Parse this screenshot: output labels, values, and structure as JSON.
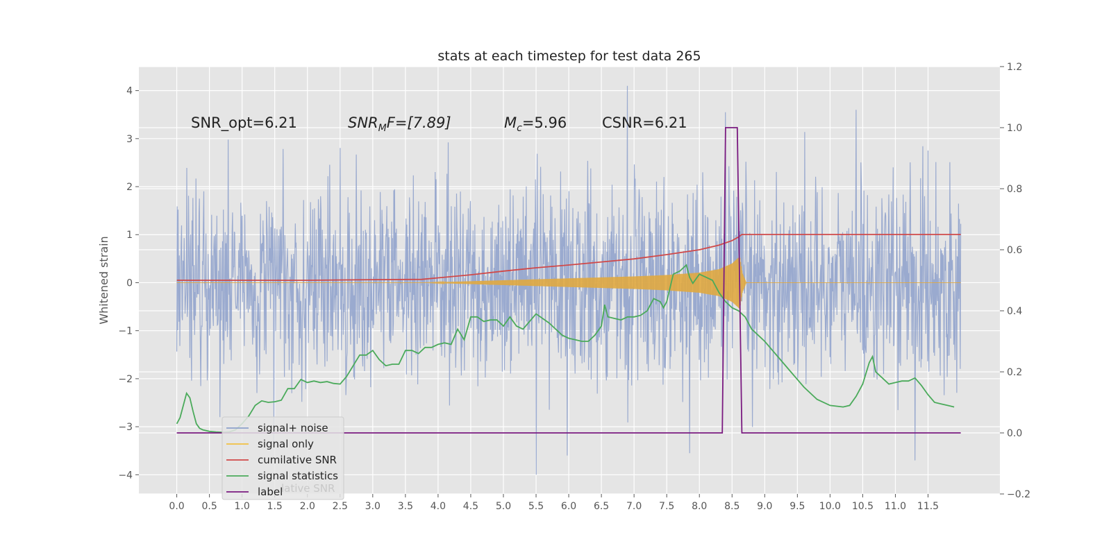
{
  "chart_data": {
    "type": "line",
    "title": "stats at each timestep for test data 265",
    "ylabel": "Whitened strain",
    "xlabel": "",
    "xlim": [
      -0.58,
      12.6
    ],
    "ylim": [
      -4.4,
      4.5
    ],
    "y2lim": [
      -0.2,
      1.2
    ],
    "grid": true,
    "legend_placement": "lower-left",
    "x_ticks": [
      "0.0",
      "0.5",
      "1.0",
      "1.5",
      "2.0",
      "2.5",
      "3.0",
      "3.5",
      "4.0",
      "4.5",
      "5.0",
      "5.5",
      "6.0",
      "6.5",
      "7.0",
      "7.5",
      "8.0",
      "8.5",
      "9.0",
      "9.5",
      "10.0",
      "10.5",
      "11.0",
      "11.5"
    ],
    "y_ticks": [
      "4",
      "3",
      "2",
      "1",
      "0",
      "−1",
      "−2",
      "−3",
      "−4"
    ],
    "y2_ticks": [
      "1.2",
      "1.0",
      "0.8",
      "0.6",
      "0.4",
      "0.2",
      "0.0",
      "−0.2"
    ],
    "annotations": {
      "snr_opt": "SNR_opt=6.21",
      "snr_mf_main": "SNR",
      "snr_mf_sub": "M",
      "snr_mf_rest": "F=[7.89]",
      "mc_main": "M",
      "mc_sub": "c",
      "mc_rest": "=5.96",
      "csnr": "CSNR=6.21"
    },
    "legend": [
      {
        "name": "signal+ noise",
        "color": "#8da0cb"
      },
      {
        "name": "signal only",
        "color": "#f2c040"
      },
      {
        "name": "cumilative SNR",
        "color": "#d04848"
      },
      {
        "name": "signal statistics",
        "color": "#4aaa5a"
      },
      {
        "name": "label",
        "color": "#7a1a80"
      }
    ],
    "legend_ghost_text": "lative SNR",
    "series": [
      {
        "name": "signal+ noise",
        "axis": "left",
        "description": "whitened noisy strain, roughly gaussian noise over 0.0–12.0 s",
        "t_range": [
          0.0,
          12.0
        ],
        "amplitude_range": [
          -4.0,
          4.1
        ],
        "spike_peaks": [
          [
            6.9,
            4.1
          ],
          [
            10.4,
            3.6
          ],
          [
            8.4,
            3.55
          ],
          [
            5.5,
            -4.0
          ],
          [
            11.3,
            -3.7
          ],
          [
            7.85,
            -3.55
          ]
        ]
      },
      {
        "name": "signal only",
        "axis": "left",
        "description": "chirp signal growing from ~3.9 s to merger at ~8.65 s then ringdown to 0",
        "envelope": {
          "t": [
            3.8,
            4.5,
            5.0,
            5.5,
            6.0,
            6.5,
            7.0,
            7.5,
            8.0,
            8.3,
            8.5,
            8.62,
            8.66,
            8.72
          ],
          "amp": [
            0.0,
            0.03,
            0.05,
            0.07,
            0.09,
            0.11,
            0.13,
            0.16,
            0.21,
            0.28,
            0.4,
            0.55,
            0.2,
            0.0
          ]
        }
      },
      {
        "name": "cumilative SNR",
        "axis": "right",
        "x": [
          0.0,
          1.0,
          2.0,
          3.0,
          3.75,
          4.0,
          4.5,
          5.0,
          5.5,
          6.0,
          6.5,
          7.0,
          7.5,
          8.0,
          8.3,
          8.5,
          8.6,
          8.65,
          8.66,
          12.0
        ],
        "values": [
          0.5,
          0.5,
          0.5,
          0.502,
          0.503,
          0.508,
          0.518,
          0.53,
          0.541,
          0.55,
          0.56,
          0.57,
          0.584,
          0.6,
          0.615,
          0.63,
          0.642,
          0.65,
          0.65,
          0.65
        ]
      },
      {
        "name": "signal statistics",
        "axis": "right",
        "x": [
          0.0,
          0.05,
          0.1,
          0.15,
          0.2,
          0.25,
          0.3,
          0.35,
          0.4,
          0.5,
          0.6,
          0.7,
          0.8,
          0.9,
          1.0,
          1.1,
          1.2,
          1.3,
          1.4,
          1.5,
          1.6,
          1.7,
          1.8,
          1.9,
          2.0,
          2.1,
          2.2,
          2.3,
          2.4,
          2.5,
          2.6,
          2.7,
          2.8,
          2.9,
          3.0,
          3.1,
          3.2,
          3.3,
          3.4,
          3.5,
          3.6,
          3.7,
          3.8,
          3.9,
          4.0,
          4.1,
          4.2,
          4.3,
          4.4,
          4.5,
          4.6,
          4.7,
          4.8,
          4.9,
          5.0,
          5.1,
          5.2,
          5.3,
          5.4,
          5.5,
          5.6,
          5.7,
          5.8,
          5.9,
          6.0,
          6.1,
          6.2,
          6.3,
          6.4,
          6.5,
          6.55,
          6.6,
          6.7,
          6.8,
          6.9,
          7.0,
          7.1,
          7.2,
          7.25,
          7.3,
          7.4,
          7.45,
          7.5,
          7.6,
          7.7,
          7.8,
          7.85,
          7.9,
          8.0,
          8.1,
          8.2,
          8.3,
          8.4,
          8.5,
          8.6,
          8.7,
          8.8,
          8.9,
          9.0,
          9.2,
          9.4,
          9.6,
          9.8,
          10.0,
          10.2,
          10.3,
          10.4,
          10.5,
          10.6,
          10.65,
          10.7,
          10.8,
          10.9,
          11.0,
          11.1,
          11.2,
          11.3,
          11.4,
          11.5,
          11.6,
          11.7,
          11.8,
          11.9
        ],
        "values": [
          0.03,
          0.05,
          0.09,
          0.13,
          0.115,
          0.07,
          0.03,
          0.015,
          0.01,
          0.005,
          0.003,
          0.002,
          0.003,
          0.01,
          0.03,
          0.055,
          0.09,
          0.105,
          0.1,
          0.102,
          0.107,
          0.145,
          0.145,
          0.175,
          0.165,
          0.17,
          0.165,
          0.168,
          0.162,
          0.16,
          0.185,
          0.22,
          0.255,
          0.255,
          0.27,
          0.24,
          0.22,
          0.225,
          0.225,
          0.27,
          0.27,
          0.26,
          0.28,
          0.28,
          0.29,
          0.295,
          0.29,
          0.34,
          0.305,
          0.38,
          0.38,
          0.365,
          0.37,
          0.37,
          0.35,
          0.38,
          0.35,
          0.34,
          0.365,
          0.39,
          0.375,
          0.36,
          0.34,
          0.32,
          0.31,
          0.305,
          0.3,
          0.3,
          0.32,
          0.35,
          0.42,
          0.38,
          0.375,
          0.37,
          0.38,
          0.38,
          0.385,
          0.4,
          0.42,
          0.44,
          0.43,
          0.41,
          0.43,
          0.52,
          0.53,
          0.55,
          0.51,
          0.49,
          0.52,
          0.51,
          0.5,
          0.46,
          0.43,
          0.41,
          0.4,
          0.38,
          0.34,
          0.32,
          0.3,
          0.25,
          0.2,
          0.15,
          0.11,
          0.09,
          0.085,
          0.09,
          0.12,
          0.16,
          0.23,
          0.25,
          0.2,
          0.18,
          0.16,
          0.165,
          0.17,
          0.17,
          0.18,
          0.155,
          0.125,
          0.1,
          0.095,
          0.09,
          0.085
        ]
      },
      {
        "name": "label",
        "axis": "right",
        "x": [
          0.0,
          8.35,
          8.4,
          8.58,
          8.65,
          12.0
        ],
        "values": [
          0.0,
          0.0,
          1.0,
          1.0,
          0.0,
          0.0
        ]
      }
    ]
  }
}
